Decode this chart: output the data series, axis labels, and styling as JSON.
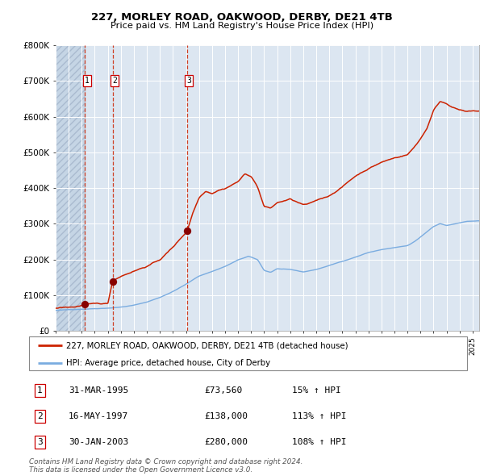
{
  "title1": "227, MORLEY ROAD, OAKWOOD, DERBY, DE21 4TB",
  "title2": "Price paid vs. HM Land Registry's House Price Index (HPI)",
  "legend_line1": "227, MORLEY ROAD, OAKWOOD, DERBY, DE21 4TB (detached house)",
  "legend_line2": "HPI: Average price, detached house, City of Derby",
  "footer1": "Contains HM Land Registry data © Crown copyright and database right 2024.",
  "footer2": "This data is licensed under the Open Government Licence v3.0.",
  "transactions": [
    {
      "num": 1,
      "date": "31-MAR-1995",
      "price": 73560,
      "pct": "15%",
      "dir": "↑"
    },
    {
      "num": 2,
      "date": "16-MAY-1997",
      "price": 138000,
      "pct": "113%",
      "dir": "↑"
    },
    {
      "num": 3,
      "date": "30-JAN-2003",
      "price": 280000,
      "pct": "108%",
      "dir": "↑"
    }
  ],
  "transaction_dates_decimal": [
    1995.247,
    1997.372,
    2003.079
  ],
  "transaction_prices": [
    73560,
    138000,
    280000
  ],
  "hpi_color": "#7aace0",
  "price_color": "#cc2200",
  "marker_color": "#880000",
  "vline_color": "#cc2200",
  "bg_color": "#dce6f1",
  "grid_color": "#ffffff",
  "ylim": [
    0,
    800000
  ],
  "xlim_start": 1993.0,
  "xlim_end": 2025.5,
  "yticks": [
    0,
    100000,
    200000,
    300000,
    400000,
    500000,
    600000,
    700000,
    800000
  ],
  "ytick_labels": [
    "£0",
    "£100K",
    "£200K",
    "£300K",
    "£400K",
    "£500K",
    "£600K",
    "£700K",
    "£800K"
  ],
  "hpi_anchors": [
    [
      1993.0,
      57000
    ],
    [
      1994.0,
      59000
    ],
    [
      1995.0,
      61000
    ],
    [
      1996.0,
      63000
    ],
    [
      1997.0,
      65000
    ],
    [
      1998.0,
      68000
    ],
    [
      1999.0,
      73000
    ],
    [
      2000.0,
      82000
    ],
    [
      2001.0,
      95000
    ],
    [
      2002.0,
      112000
    ],
    [
      2003.0,
      132000
    ],
    [
      2004.0,
      155000
    ],
    [
      2005.0,
      168000
    ],
    [
      2006.0,
      182000
    ],
    [
      2007.0,
      200000
    ],
    [
      2007.8,
      210000
    ],
    [
      2008.5,
      200000
    ],
    [
      2009.0,
      170000
    ],
    [
      2009.5,
      165000
    ],
    [
      2010.0,
      175000
    ],
    [
      2011.0,
      172000
    ],
    [
      2012.0,
      165000
    ],
    [
      2013.0,
      172000
    ],
    [
      2014.0,
      183000
    ],
    [
      2015.0,
      195000
    ],
    [
      2016.0,
      207000
    ],
    [
      2017.0,
      220000
    ],
    [
      2018.0,
      228000
    ],
    [
      2019.0,
      233000
    ],
    [
      2020.0,
      238000
    ],
    [
      2020.5,
      248000
    ],
    [
      2021.0,
      262000
    ],
    [
      2022.0,
      292000
    ],
    [
      2022.5,
      300000
    ],
    [
      2023.0,
      295000
    ],
    [
      2023.5,
      298000
    ],
    [
      2024.0,
      302000
    ],
    [
      2024.5,
      305000
    ],
    [
      2025.3,
      307000
    ]
  ],
  "price_anchors": [
    [
      1993.0,
      63000
    ],
    [
      1993.5,
      65000
    ],
    [
      1994.0,
      66000
    ],
    [
      1994.5,
      67000
    ],
    [
      1995.247,
      73560
    ],
    [
      1996.0,
      73560
    ],
    [
      1997.0,
      73560
    ],
    [
      1997.372,
      138000
    ],
    [
      1998.0,
      152000
    ],
    [
      1999.0,
      168000
    ],
    [
      2000.0,
      182000
    ],
    [
      2001.0,
      200000
    ],
    [
      2002.0,
      235000
    ],
    [
      2003.079,
      280000
    ],
    [
      2003.5,
      330000
    ],
    [
      2004.0,
      375000
    ],
    [
      2004.5,
      395000
    ],
    [
      2005.0,
      390000
    ],
    [
      2005.5,
      400000
    ],
    [
      2006.0,
      405000
    ],
    [
      2007.0,
      425000
    ],
    [
      2007.5,
      445000
    ],
    [
      2008.0,
      440000
    ],
    [
      2008.5,
      410000
    ],
    [
      2009.0,
      355000
    ],
    [
      2009.5,
      350000
    ],
    [
      2010.0,
      365000
    ],
    [
      2010.5,
      370000
    ],
    [
      2011.0,
      375000
    ],
    [
      2012.0,
      358000
    ],
    [
      2012.5,
      360000
    ],
    [
      2013.0,
      368000
    ],
    [
      2014.0,
      382000
    ],
    [
      2015.0,
      408000
    ],
    [
      2016.0,
      438000
    ],
    [
      2017.0,
      460000
    ],
    [
      2018.0,
      478000
    ],
    [
      2019.0,
      490000
    ],
    [
      2020.0,
      500000
    ],
    [
      2020.5,
      520000
    ],
    [
      2021.0,
      545000
    ],
    [
      2021.5,
      575000
    ],
    [
      2022.0,
      625000
    ],
    [
      2022.5,
      650000
    ],
    [
      2023.0,
      645000
    ],
    [
      2023.5,
      635000
    ],
    [
      2024.0,
      628000
    ],
    [
      2024.5,
      622000
    ],
    [
      2025.0,
      622000
    ],
    [
      2025.3,
      622000
    ]
  ]
}
